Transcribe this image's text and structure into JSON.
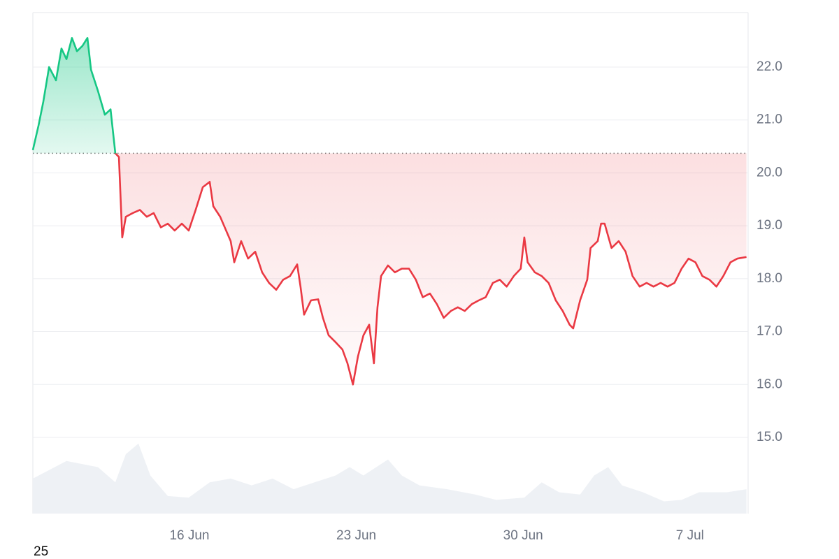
{
  "chart_data": {
    "type": "line",
    "corner_label": "25",
    "baseline": 20.37,
    "up_color": "#16c784",
    "down_color": "#ea3943",
    "grid": true,
    "xlim": [
      9.43,
      39.44
    ],
    "xticks": [
      {
        "value": 16,
        "label": "16 Jun"
      },
      {
        "value": 23,
        "label": "23 Jun"
      },
      {
        "value": 30,
        "label": "30 Jun"
      },
      {
        "value": 37,
        "label": "7 Jul"
      }
    ],
    "ylim": [
      13.56,
      23.03
    ],
    "yticks": [
      {
        "value": 15,
        "label": "15.0"
      },
      {
        "value": 16,
        "label": "16.0"
      },
      {
        "value": 17,
        "label": "17.0"
      },
      {
        "value": 18,
        "label": "18.0"
      },
      {
        "value": 19,
        "label": "19.0"
      },
      {
        "value": 20,
        "label": "20.0"
      },
      {
        "value": 21,
        "label": "21.0"
      },
      {
        "value": 22,
        "label": "22.0"
      }
    ],
    "series": [
      {
        "x": [
          9.43,
          9.67,
          9.87,
          10.11,
          10.4,
          10.63,
          10.84,
          11.07,
          11.28,
          11.51,
          11.72,
          11.87,
          12.16,
          12.45,
          12.69,
          12.89,
          13.04,
          13.18,
          13.33,
          13.62,
          13.92,
          14.21,
          14.5,
          14.8,
          15.09,
          15.38,
          15.68,
          15.97,
          16.26,
          16.56,
          16.85,
          17.0,
          17.29,
          17.73,
          17.88,
          18.17,
          18.46,
          18.76,
          19.05,
          19.34,
          19.64,
          19.93,
          20.22,
          20.52,
          20.66,
          20.81,
          21.1,
          21.4,
          21.6,
          21.84,
          22.13,
          22.42,
          22.63,
          22.86,
          23.07,
          23.3,
          23.54,
          23.74,
          23.89,
          24.04,
          24.33,
          24.62,
          24.91,
          25.21,
          25.5,
          25.79,
          26.09,
          26.38,
          26.67,
          26.97,
          27.26,
          27.55,
          27.85,
          28.14,
          28.43,
          28.73,
          29.02,
          29.31,
          29.61,
          29.9,
          30.05,
          30.19,
          30.49,
          30.78,
          31.07,
          31.37,
          31.66,
          31.95,
          32.1,
          32.39,
          32.69,
          32.83,
          33.13,
          33.27,
          33.42,
          33.71,
          34.01,
          34.3,
          34.59,
          34.89,
          35.18,
          35.47,
          35.77,
          36.06,
          36.35,
          36.65,
          36.94,
          37.23,
          37.52,
          37.82,
          38.11,
          38.4,
          38.7,
          38.99,
          39.37
        ],
        "values": [
          20.43,
          20.9,
          21.35,
          22.0,
          21.75,
          22.35,
          22.15,
          22.55,
          22.3,
          22.4,
          22.55,
          21.95,
          21.55,
          21.1,
          21.2,
          20.37,
          20.3,
          18.78,
          19.17,
          19.24,
          19.3,
          19.17,
          19.24,
          18.97,
          19.04,
          18.91,
          19.04,
          18.91,
          19.3,
          19.73,
          19.83,
          19.37,
          19.17,
          18.71,
          18.31,
          18.71,
          18.38,
          18.51,
          18.12,
          17.92,
          17.79,
          17.98,
          18.05,
          18.27,
          17.85,
          17.32,
          17.59,
          17.61,
          17.26,
          16.93,
          16.8,
          16.66,
          16.4,
          16.0,
          16.53,
          16.93,
          17.13,
          16.4,
          17.46,
          18.05,
          18.25,
          18.12,
          18.19,
          18.19,
          17.98,
          17.65,
          17.72,
          17.52,
          17.26,
          17.39,
          17.46,
          17.39,
          17.52,
          17.59,
          17.65,
          17.92,
          17.98,
          17.85,
          18.05,
          18.19,
          18.78,
          18.31,
          18.12,
          18.05,
          17.92,
          17.59,
          17.39,
          17.13,
          17.06,
          17.59,
          17.98,
          18.58,
          18.71,
          19.04,
          19.04,
          18.58,
          18.71,
          18.51,
          18.05,
          17.85,
          17.92,
          17.85,
          17.92,
          17.85,
          17.92,
          18.19,
          18.38,
          18.31,
          18.05,
          17.98,
          17.85,
          18.05,
          18.31,
          18.38,
          18.41
        ]
      }
    ],
    "volume": {
      "color": "#eef1f5",
      "ylim": [
        0,
        100
      ],
      "x": [
        9.43,
        10.84,
        12.16,
        12.89,
        13.33,
        13.86,
        14.36,
        15.09,
        15.97,
        16.85,
        17.73,
        18.61,
        19.49,
        20.37,
        21.25,
        22.13,
        22.72,
        23.3,
        24.33,
        24.91,
        25.65,
        26.82,
        27.99,
        28.87,
        30.05,
        30.78,
        31.51,
        32.39,
        32.98,
        33.57,
        34.15,
        35.03,
        35.91,
        36.65,
        37.38,
        38.55,
        39.37
      ],
      "values": [
        46,
        69,
        61,
        41,
        78,
        92,
        50,
        23,
        21,
        41,
        46,
        37,
        46,
        32,
        41,
        50,
        61,
        50,
        71,
        50,
        37,
        32,
        25,
        18,
        21,
        41,
        28,
        25,
        50,
        61,
        37,
        28,
        16,
        18,
        28,
        28,
        32
      ]
    }
  }
}
